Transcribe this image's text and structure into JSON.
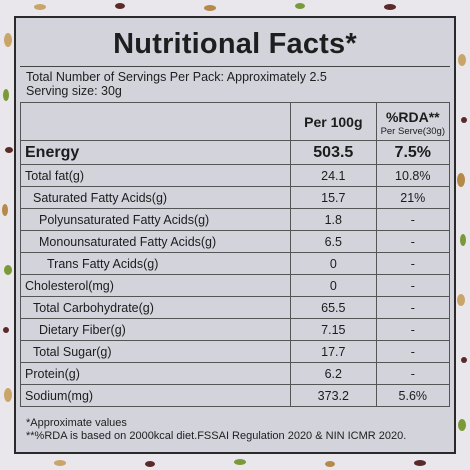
{
  "title": "Nutritional Facts*",
  "servings_text": "Total Number of Servings Per Pack: Approximately 2.5",
  "serving_size_text": "Serving size: 30g",
  "header": {
    "per100": "Per 100g",
    "rda": "%RDA**",
    "rda_sub": "Per Serve(30g)"
  },
  "rows": [
    {
      "name": "Energy",
      "per100": "503.5",
      "rda": "7.5%"
    },
    {
      "name": "Total fat(g)",
      "per100": "24.1",
      "rda": "10.8%"
    },
    {
      "name": "Saturated  Fatty Acids(g)",
      "per100": "15.7",
      "rda": "21%"
    },
    {
      "name": "Polyunsaturated Fatty Acids(g)",
      "per100": "1.8",
      "rda": "-"
    },
    {
      "name": "Monounsaturated Fatty Acids(g)",
      "per100": "6.5",
      "rda": "-"
    },
    {
      "name": "Trans Fatty Acids(g)",
      "per100": "0",
      "rda": "-"
    },
    {
      "name": "Cholesterol(mg)",
      "per100": "0",
      "rda": "-"
    },
    {
      "name": "Total Carbohydrate(g)",
      "per100": "65.5",
      "rda": "-"
    },
    {
      "name": "Dietary Fiber(g)",
      "per100": "7.15",
      "rda": "-"
    },
    {
      "name": "Total Sugar(g)",
      "per100": "17.7",
      "rda": "-"
    },
    {
      "name": "Protein(g)",
      "per100": "6.2",
      "rda": "-"
    },
    {
      "name": "Sodium(mg)",
      "per100": "373.2",
      "rda": "5.6%"
    }
  ],
  "footnotes": [
    "*Approximate values",
    "**%RDA is based on 2000kcal diet.FSSAI Regulation 2020 & NIN ICMR 2020."
  ],
  "colors": {
    "panel": "#d3d3dc",
    "background": "#eae7ec",
    "border": "#2a2a2a"
  }
}
